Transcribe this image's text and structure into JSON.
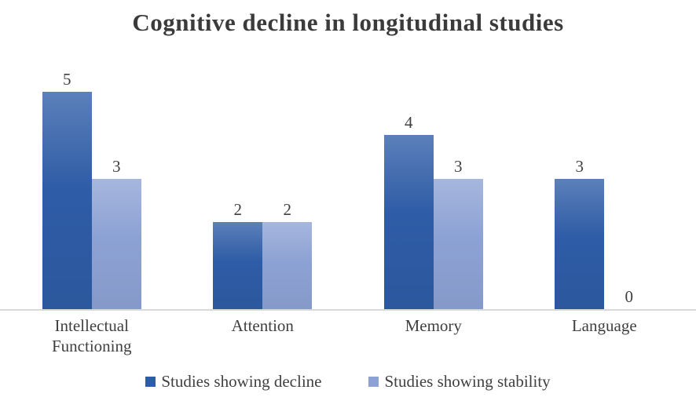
{
  "chart_data": {
    "type": "bar",
    "title": "Cognitive decline in longitudinal studies",
    "categories": [
      "Intellectual Functioning",
      "Attention",
      "Memory",
      "Language"
    ],
    "series": [
      {
        "name": "Studies showing decline",
        "color": "#2e5ca6",
        "values": [
          5,
          2,
          4,
          3
        ]
      },
      {
        "name": "Studies showing stability",
        "color": "#8da2d4",
        "values": [
          3,
          2,
          3,
          0
        ]
      }
    ],
    "ylim": [
      0,
      5
    ],
    "grid": false,
    "data_labels": true,
    "legend_position": "bottom",
    "axis_line_color": "#d9d9d9"
  }
}
